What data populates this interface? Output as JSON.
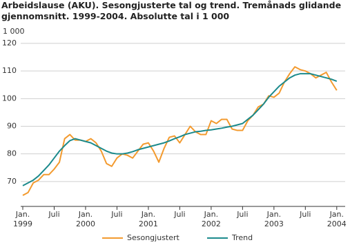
{
  "chart_data": {
    "type": "line",
    "title": "Arbeidslause (AKU). Sesongjusterte tal og trend. Tremånads glidande gjennomsnitt. 1999-2004. Absolutte tal i 1 000",
    "y_axis_label": "1 000",
    "categories": [
      "Jan.\n1999",
      null,
      null,
      null,
      null,
      null,
      "Juli",
      null,
      null,
      null,
      null,
      null,
      "Jan.\n2000",
      null,
      null,
      null,
      null,
      null,
      "Juli",
      null,
      null,
      null,
      null,
      null,
      "Jan.\n2001",
      null,
      null,
      null,
      null,
      null,
      "Juli",
      null,
      null,
      null,
      null,
      null,
      "Jan.\n2002",
      null,
      null,
      null,
      null,
      null,
      "Juli",
      null,
      null,
      null,
      null,
      null,
      "Jan.\n2003",
      null,
      null,
      null,
      null,
      null,
      "Juli",
      null,
      null,
      null,
      null,
      null,
      "Jan.\n2004"
    ],
    "series": [
      {
        "name": "Sesongjustert",
        "color": "#f39a2e",
        "values": [
          65,
          66,
          69.5,
          70.5,
          72.5,
          72.5,
          74.5,
          77,
          85.5,
          87,
          85,
          85,
          84.5,
          85.5,
          84,
          81,
          76.5,
          75.5,
          78.5,
          80,
          79.5,
          78.5,
          81,
          83.5,
          84,
          81,
          77,
          82,
          86,
          86.5,
          84,
          87,
          90,
          88,
          87,
          87,
          92,
          91,
          92.5,
          92.5,
          89,
          88.5,
          88.5,
          92,
          94,
          97,
          98,
          101,
          100.5,
          102,
          106,
          109,
          111.5,
          110.5,
          110,
          109,
          107.5,
          108.5,
          109.5,
          106,
          103
        ]
      },
      {
        "name": "Trend",
        "color": "#1b8a8c",
        "values": [
          68.5,
          69.5,
          70.5,
          72,
          74,
          76,
          78.5,
          81,
          83,
          84.8,
          85.5,
          85,
          84.5,
          84,
          83,
          82,
          81,
          80.3,
          80,
          80,
          80.3,
          80.8,
          81.5,
          82,
          82.5,
          83,
          83.5,
          84,
          84.7,
          85.5,
          86.2,
          87,
          87.5,
          88,
          88.2,
          88.5,
          88.7,
          89,
          89.3,
          89.7,
          90,
          90.5,
          91,
          92.5,
          94,
          96,
          98,
          100.5,
          102.5,
          104.5,
          106,
          107.5,
          108.5,
          109,
          109,
          109,
          108.5,
          108,
          107.5,
          107,
          106.3
        ]
      }
    ],
    "ylim": [
      61,
      120
    ],
    "yticks": [
      70,
      80,
      90,
      100,
      110,
      120
    ],
    "grid": true
  }
}
